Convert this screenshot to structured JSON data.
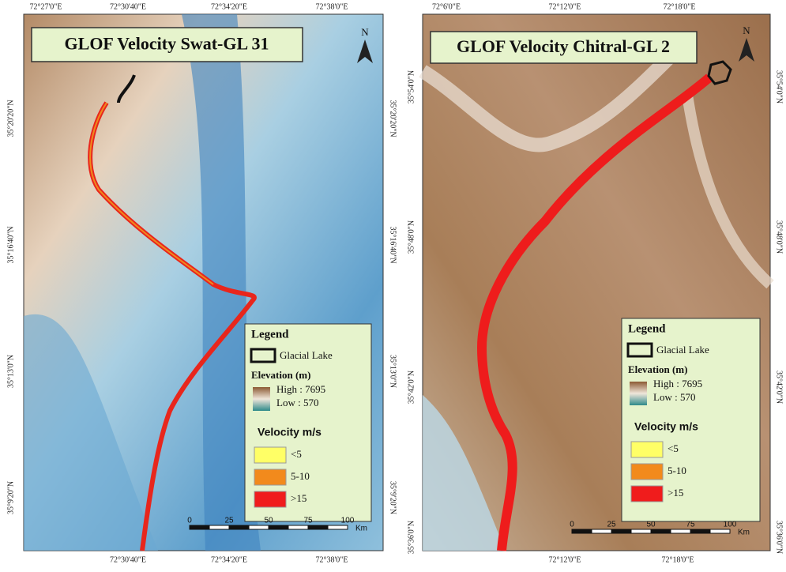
{
  "maps": [
    {
      "title": "GLOF Velocity Swat-GL 31",
      "north": "N",
      "top_labels": [
        "72°27'0\"E",
        "72°30'40\"E",
        "72°34'20\"E",
        "72°38'0\"E"
      ],
      "bottom_labels": [
        "72°30'40\"E",
        "72°34'20\"E",
        "72°38'0\"E"
      ],
      "left_labels": [
        "35°20'20\"N",
        "35°16'40\"N",
        "35°13'0\"N",
        "35°9'20\"N"
      ],
      "right_labels": [
        "35°20'20\"N",
        "35°16'40\"N",
        "35°13'0\"N",
        "35°9'20\"N"
      ],
      "legend": {
        "title": "Legend",
        "lake": "Glacial Lake",
        "elevation_title": "Elevation (m)",
        "high": "High : 7695",
        "low": "Low : 570",
        "velocity_title": "Velocity m/s",
        "classes": [
          "<5",
          "5-10",
          ">15"
        ]
      },
      "scale": {
        "ticks": [
          "0",
          "25",
          "50",
          "75",
          "100"
        ],
        "unit": "Km"
      }
    },
    {
      "title": "GLOF Velocity Chitral-GL 2",
      "north": "N",
      "top_labels": [
        "72°6'0\"E",
        "72°12'0\"E",
        "72°18'0\"E"
      ],
      "bottom_labels": [
        "72°12'0\"E",
        "72°18'0\"E"
      ],
      "left_labels": [
        "35°54'0\"N",
        "35°48'0\"N",
        "35°42'0\"N",
        "35°36'0\"N"
      ],
      "right_labels": [
        "35°54'0\"N",
        "35°48'0\"N",
        "35°42'0\"N",
        "35°36'0\"N"
      ],
      "legend": {
        "title": "Legend",
        "lake": "Glacial Lake",
        "elevation_title": "Elevation (m)",
        "high": "High : 7695",
        "low": "Low : 570",
        "velocity_title": "Velocity m/s",
        "classes": [
          "<5",
          "5-10",
          ">15"
        ]
      },
      "scale": {
        "ticks": [
          "0",
          "25",
          "50",
          "75",
          "100"
        ],
        "unit": "Km"
      }
    }
  ]
}
